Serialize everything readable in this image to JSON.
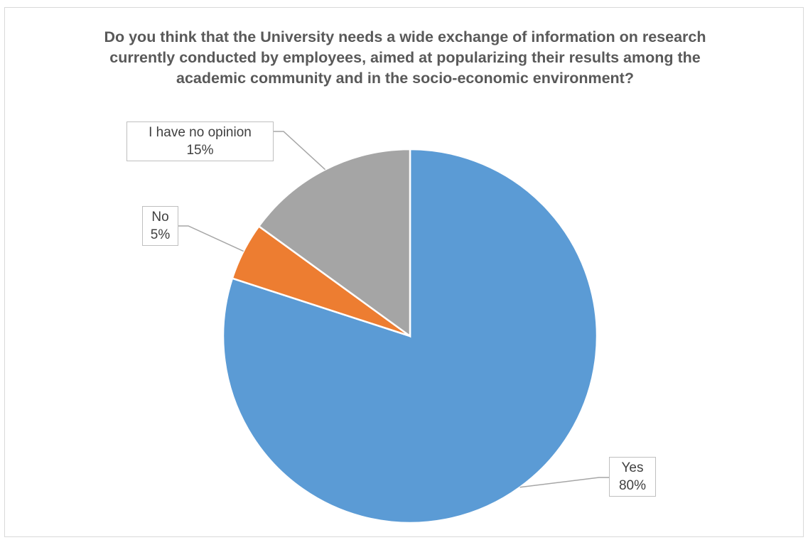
{
  "chart_data": {
    "type": "pie",
    "title": "Do you think that the University needs a wide exchange of information on research currently conducted by employees, aimed at popularizing their results among the academic community and in the socio-economic environment?",
    "slices": [
      {
        "label": "Yes",
        "value": 80,
        "value_label": "80%",
        "color": "#5b9bd5"
      },
      {
        "label": "No",
        "value": 5,
        "value_label": "5%",
        "color": "#ed7d31"
      },
      {
        "label": "I have no opinion",
        "value": 15,
        "value_label": "15%",
        "color": "#a5a5a5"
      }
    ],
    "legend": "none"
  }
}
